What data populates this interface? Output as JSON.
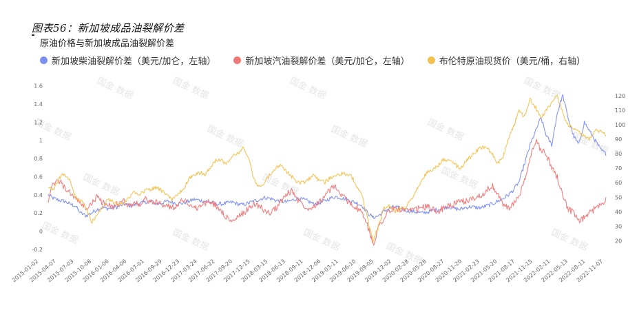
{
  "caption": "图表56：新加坡成品油裂解价差",
  "watermark": "国金 数据",
  "chart_data": {
    "type": "line",
    "title": "原油价格与新加坡成品油裂解价差",
    "legend_position": "top",
    "grid": false,
    "x_ticks": [
      "2015-01-02",
      "2015-04-07",
      "2015-07-03",
      "2015-10-08",
      "2016-01-06",
      "2016-04-06",
      "2016-07-01",
      "2016-09-29",
      "2016-12-23",
      "2017-03-24",
      "2017-06-22",
      "2017-09-20",
      "2017-12-15",
      "2018-03-15",
      "2018-06-13",
      "2018-09-11",
      "2018-12-06",
      "2019-03-11",
      "2019-06-10",
      "2019-09-05",
      "2019-12-02",
      "2020-02-28",
      "2020-05-28",
      "2020-08-27",
      "2020-11-20",
      "2021-02-23",
      "2021-05-20",
      "2021-08-17",
      "2021-11-15",
      "2022-02-11",
      "2022-05-13",
      "2022-08-11",
      "2022-11-07"
    ],
    "y_left": {
      "ticks": [
        "-0.2",
        "0",
        "0.2",
        "0.4",
        "0.6",
        "0.8",
        "1",
        "1.2",
        "1.4",
        "1.6"
      ],
      "range": [
        -0.2,
        1.65
      ]
    },
    "y_right": {
      "ticks": [
        "20",
        "30",
        "40",
        "50",
        "60",
        "70",
        "80",
        "90",
        "100",
        "110",
        "120"
      ],
      "range": [
        14,
        130
      ]
    },
    "series": [
      {
        "name": "新加坡柴油裂解价差（美元/加仑，左轴）",
        "axis": "left",
        "color": "#7b8ff0",
        "values": [
          0.4,
          0.36,
          0.34,
          0.33,
          0.3,
          0.28,
          0.2,
          0.17,
          0.2,
          0.24,
          0.26,
          0.25,
          0.26,
          0.27,
          0.3,
          0.28,
          0.29,
          0.31,
          0.32,
          0.33,
          0.3,
          0.31,
          0.33,
          0.32,
          0.3,
          0.31,
          0.33,
          0.35,
          0.34,
          0.33,
          0.32,
          0.3,
          0.3,
          0.31,
          0.32,
          0.3,
          0.29,
          0.31,
          0.33,
          0.35,
          0.37,
          0.36,
          0.34,
          0.33,
          0.32,
          0.34,
          0.36,
          0.35,
          0.33,
          0.3,
          0.31,
          0.33,
          0.36,
          0.38,
          0.37,
          0.35,
          0.33,
          0.31,
          0.28,
          0.2,
          0.15,
          0.17,
          0.22,
          0.25,
          0.27,
          0.25,
          0.23,
          0.22,
          0.21,
          0.2,
          0.21,
          0.23,
          0.24,
          0.26,
          0.27,
          0.25,
          0.24,
          0.26,
          0.27,
          0.26,
          0.26,
          0.28,
          0.3,
          0.33,
          0.36,
          0.4,
          0.46,
          0.55,
          0.75,
          0.95,
          1.1,
          1.25,
          1.05,
          0.95,
          1.3,
          1.5,
          1.25,
          1.05,
          0.95,
          1.2,
          1.1,
          1.0,
          0.9,
          0.85
        ]
      },
      {
        "name": "新加坡汽油裂解价差（美元/加仑，左轴）",
        "axis": "left",
        "color": "#f07878",
        "values": [
          0.35,
          0.52,
          0.56,
          0.48,
          0.42,
          0.37,
          0.3,
          0.25,
          0.3,
          0.38,
          0.32,
          0.28,
          0.27,
          0.3,
          0.33,
          0.28,
          0.31,
          0.3,
          0.35,
          0.33,
          0.31,
          0.3,
          0.28,
          0.26,
          0.3,
          0.35,
          0.3,
          0.25,
          0.27,
          0.31,
          0.32,
          0.28,
          0.22,
          0.15,
          0.1,
          0.15,
          0.2,
          0.25,
          0.3,
          0.28,
          0.22,
          0.2,
          0.25,
          0.33,
          0.4,
          0.45,
          0.35,
          0.3,
          0.25,
          0.28,
          0.32,
          0.38,
          0.45,
          0.5,
          0.4,
          0.35,
          0.3,
          0.25,
          0.2,
          0.05,
          -0.15,
          0.05,
          0.15,
          0.22,
          0.25,
          0.24,
          0.23,
          0.22,
          0.24,
          0.26,
          0.27,
          0.24,
          0.22,
          0.25,
          0.28,
          0.3,
          0.32,
          0.33,
          0.35,
          0.37,
          0.4,
          0.45,
          0.5,
          0.4,
          0.3,
          0.25,
          0.3,
          0.4,
          0.55,
          0.8,
          1.0,
          0.9,
          0.85,
          0.7,
          0.6,
          0.4,
          0.25,
          0.2,
          0.1,
          0.15,
          0.2,
          0.25,
          0.3,
          0.35
        ]
      },
      {
        "name": "布伦特原油现货价（美元/桶，右轴）",
        "axis": "right",
        "color": "#f2c14e",
        "values": [
          57,
          55,
          63,
          66,
          62,
          50,
          48,
          42,
          33,
          37,
          43,
          48,
          47,
          45,
          46,
          50,
          54,
          52,
          55,
          55,
          57,
          54,
          52,
          48,
          52,
          56,
          63,
          65,
          67,
          66,
          70,
          76,
          75,
          73,
          78,
          80,
          84,
          77,
          62,
          57,
          60,
          66,
          70,
          72,
          68,
          64,
          60,
          60,
          62,
          65,
          62,
          60,
          63,
          65,
          66,
          66,
          64,
          58,
          50,
          35,
          20,
          30,
          42,
          44,
          40,
          42,
          43,
          48,
          55,
          62,
          67,
          69,
          72,
          76,
          75,
          73,
          70,
          74,
          78,
          82,
          84,
          85,
          80,
          73,
          78,
          90,
          100,
          110,
          105,
          118,
          112,
          105,
          110,
          115,
          120,
          108,
          100,
          98,
          95,
          92,
          90,
          97,
          95,
          93
        ]
      }
    ]
  }
}
